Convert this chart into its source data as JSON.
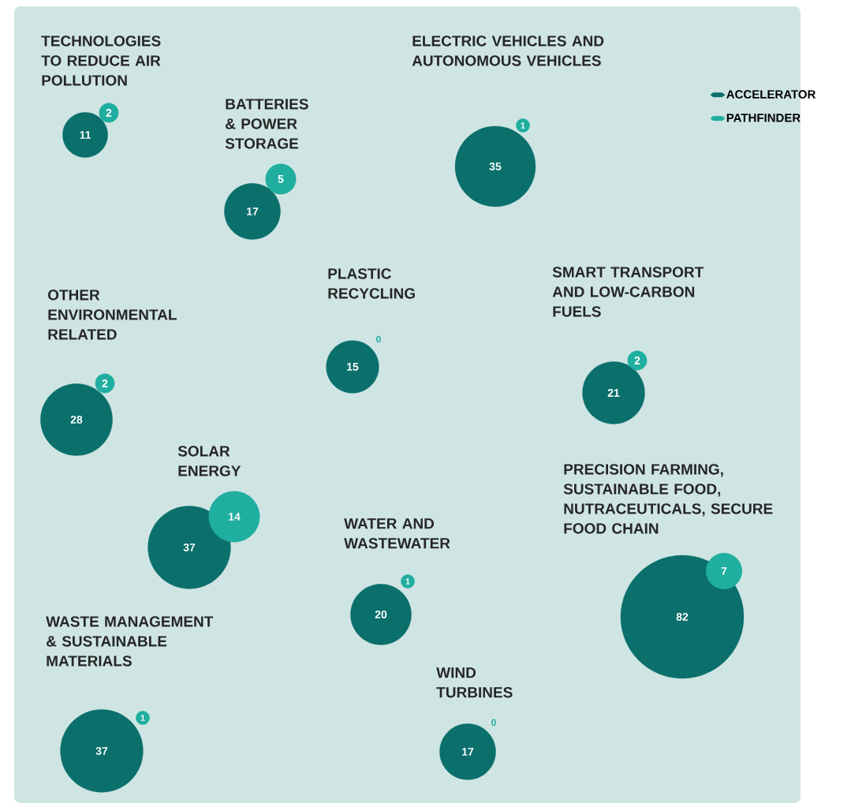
{
  "chart_data": {
    "type": "other",
    "categories": [
      "TECHNOLOGIES TO REDUCE AIR POLLUTION",
      "BATTERIES & POWER STORAGE",
      "ELECTRIC VEHICLES AND AUTONOMOUS VEHICLES",
      "PLASTIC RECYCLING",
      "SMART TRANSPORT AND LOW-CARBON FUELS",
      "OTHER ENVIRONMENTAL RELATED",
      "PRECISION FARMING, SUSTAINABLE FOOD, NUTRACEUTICALS, SECURE FOOD CHAIN",
      "SOLAR ENERGY",
      "WATER AND WASTEWATER",
      "WASTE MANAGEMENT & SUSTAINABLE MATERIALS",
      "WIND TURBINES"
    ],
    "series": [
      {
        "name": "ACCELERATOR",
        "color": "#0b6f6b",
        "values": [
          11,
          17,
          35,
          15,
          21,
          28,
          82,
          37,
          20,
          37,
          17
        ]
      },
      {
        "name": "PATHFINDER",
        "color": "#1fae9f",
        "values": [
          2,
          5,
          1,
          0,
          2,
          2,
          7,
          14,
          1,
          1,
          0
        ]
      }
    ],
    "legend": "top right",
    "data_labels": true
  }
}
